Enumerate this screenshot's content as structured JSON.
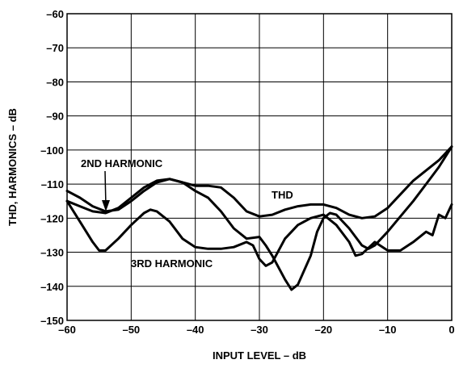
{
  "chart_data": {
    "type": "line",
    "xlabel": "INPUT LEVEL – dB",
    "ylabel": "THD, HARMONICS – dB",
    "xlim": [
      -60,
      0
    ],
    "ylim": [
      -150,
      -60
    ],
    "xticks": [
      -60,
      -50,
      -40,
      -30,
      -20,
      -10,
      0
    ],
    "yticks": [
      -60,
      -70,
      -80,
      -90,
      -100,
      -110,
      -120,
      -130,
      -140,
      -150
    ],
    "xtick_labels": [
      "–60",
      "–50",
      "–40",
      "–30",
      "–20",
      "–10",
      "0"
    ],
    "ytick_labels": [
      "–60",
      "–70",
      "–80",
      "–90",
      "–100",
      "–110",
      "–120",
      "–130",
      "–140",
      "–150"
    ],
    "grid": true,
    "series": [
      {
        "name": "2ND HARMONIC",
        "points": [
          [
            -60,
            -112
          ],
          [
            -58,
            -114
          ],
          [
            -56,
            -116.5
          ],
          [
            -54,
            -118
          ],
          [
            -52,
            -117.5
          ],
          [
            -50,
            -115
          ],
          [
            -48,
            -112
          ],
          [
            -46,
            -109.5
          ],
          [
            -44,
            -108.5
          ],
          [
            -42,
            -109.5
          ],
          [
            -40,
            -112
          ],
          [
            -38,
            -114
          ],
          [
            -36,
            -118
          ],
          [
            -34,
            -123
          ],
          [
            -32,
            -126
          ],
          [
            -30,
            -125.5
          ],
          [
            -29,
            -128
          ],
          [
            -28,
            -131
          ],
          [
            -26,
            -138
          ],
          [
            -25,
            -141
          ],
          [
            -24,
            -139.5
          ],
          [
            -22,
            -131
          ],
          [
            -21,
            -124
          ],
          [
            -20,
            -120
          ],
          [
            -19,
            -118.5
          ],
          [
            -18,
            -119
          ],
          [
            -16,
            -123
          ],
          [
            -14,
            -128
          ],
          [
            -13,
            -129
          ],
          [
            -12,
            -128
          ],
          [
            -10,
            -124
          ],
          [
            -8,
            -119.5
          ],
          [
            -6,
            -115
          ],
          [
            -4,
            -110
          ],
          [
            -2,
            -105
          ],
          [
            -1,
            -102
          ],
          [
            0,
            -99
          ]
        ]
      },
      {
        "name": "3RD HARMONIC",
        "points": [
          [
            -60,
            -115
          ],
          [
            -58,
            -121
          ],
          [
            -56,
            -127
          ],
          [
            -55,
            -129.5
          ],
          [
            -54,
            -129.5
          ],
          [
            -52,
            -126
          ],
          [
            -50,
            -122
          ],
          [
            -48,
            -118.5
          ],
          [
            -47,
            -117.5
          ],
          [
            -46,
            -118
          ],
          [
            -44,
            -121
          ],
          [
            -42,
            -126
          ],
          [
            -40,
            -128.5
          ],
          [
            -38,
            -129
          ],
          [
            -36,
            -129
          ],
          [
            -34,
            -128.5
          ],
          [
            -32,
            -127
          ],
          [
            -31,
            -128
          ],
          [
            -30,
            -132
          ],
          [
            -29,
            -134
          ],
          [
            -28,
            -133
          ],
          [
            -26,
            -126
          ],
          [
            -24,
            -122
          ],
          [
            -22,
            -120
          ],
          [
            -20,
            -119
          ],
          [
            -18,
            -122
          ],
          [
            -16,
            -127
          ],
          [
            -15,
            -131
          ],
          [
            -14,
            -130.5
          ],
          [
            -12,
            -127
          ],
          [
            -10,
            -129.5
          ],
          [
            -8,
            -129.5
          ],
          [
            -6,
            -127
          ],
          [
            -4,
            -124
          ],
          [
            -3,
            -125
          ],
          [
            -2,
            -119
          ],
          [
            -1,
            -120
          ],
          [
            0,
            -116
          ]
        ]
      },
      {
        "name": "THD",
        "points": [
          [
            -60,
            -115
          ],
          [
            -58,
            -116.5
          ],
          [
            -56,
            -118
          ],
          [
            -54,
            -118.5
          ],
          [
            -52,
            -117
          ],
          [
            -50,
            -114
          ],
          [
            -48,
            -111
          ],
          [
            -46,
            -109
          ],
          [
            -44,
            -108.5
          ],
          [
            -42,
            -109.5
          ],
          [
            -40,
            -110.5
          ],
          [
            -38,
            -110.5
          ],
          [
            -36,
            -111
          ],
          [
            -34,
            -114
          ],
          [
            -32,
            -118
          ],
          [
            -30,
            -119.5
          ],
          [
            -28,
            -119
          ],
          [
            -26,
            -117.5
          ],
          [
            -24,
            -116.5
          ],
          [
            -22,
            -116
          ],
          [
            -20,
            -116
          ],
          [
            -18,
            -117
          ],
          [
            -16,
            -119
          ],
          [
            -14,
            -120
          ],
          [
            -12,
            -119.5
          ],
          [
            -10,
            -117
          ],
          [
            -8,
            -113
          ],
          [
            -6,
            -109
          ],
          [
            -4,
            -106
          ],
          [
            -2,
            -103
          ],
          [
            -1,
            -101
          ],
          [
            0,
            -99
          ]
        ]
      }
    ],
    "annotations": [
      "2ND HARMONIC",
      "THD",
      "3RD HARMONIC"
    ]
  }
}
